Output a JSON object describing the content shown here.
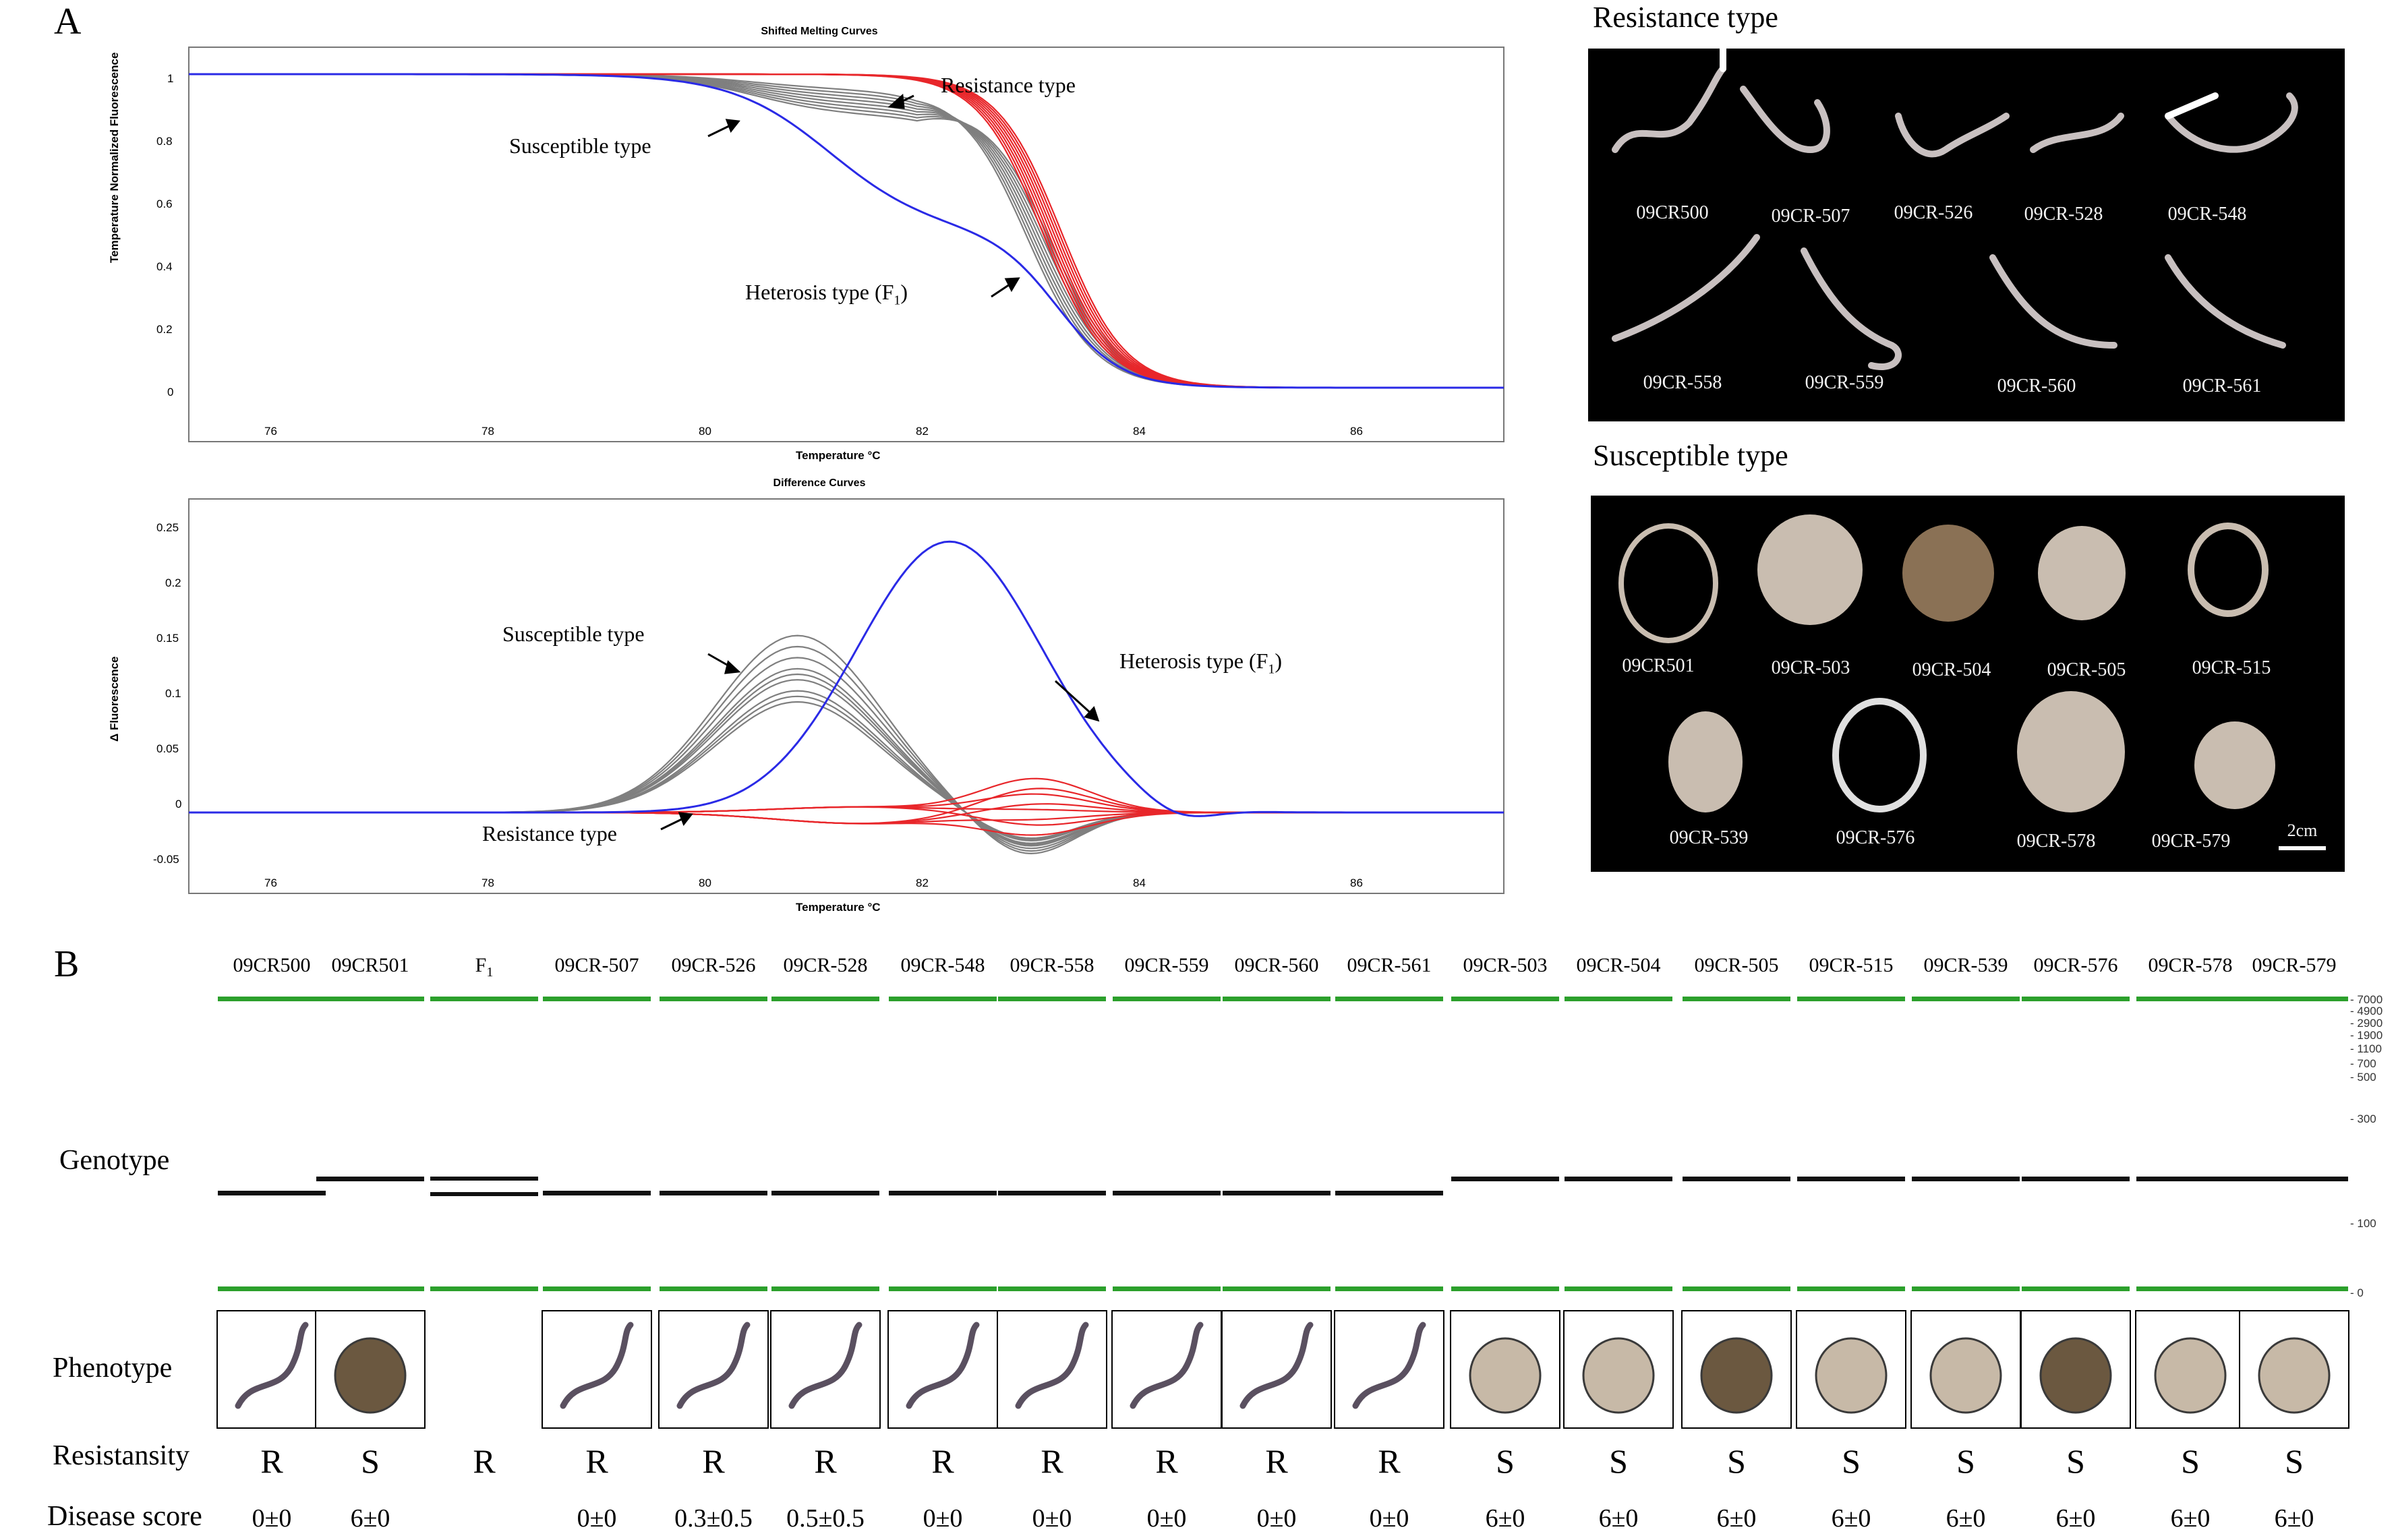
{
  "panelA": {
    "letter": "A",
    "melting": {
      "title": "Shifted Melting Curves",
      "ylabel": "Temperature Normalized Fluorescence",
      "xlabel": "Temperature °C",
      "yticks": [
        "1",
        "0.8",
        "0.6",
        "0.4",
        "0.2",
        "0"
      ],
      "xticks": [
        "76",
        "78",
        "80",
        "82",
        "84",
        "86"
      ],
      "annotations": {
        "resistance": "Resistance type",
        "susceptible": "Susceptible type",
        "heterosis": "Heterosis type (F",
        "heterosis_sub": "1",
        "close": ")"
      }
    },
    "difference": {
      "title": "Difference Curves",
      "ylabel": "Δ Fluorescence",
      "xlabel": "Temperature °C",
      "yticks": [
        "0.25",
        "0.2",
        "0.15",
        "0.1",
        "0.05",
        "0",
        "-0.05"
      ],
      "xticks": [
        "76",
        "78",
        "80",
        "82",
        "84",
        "86"
      ],
      "annotations": {
        "susceptible": "Susceptible type",
        "heterosis": "Heterosis type (F",
        "heterosis_sub": "1",
        "close": ")",
        "resistance": "Resistance type"
      }
    },
    "photos": {
      "resistance_title": "Resistance type",
      "resistance_labels": [
        "09CR500",
        "09CR-507",
        "09CR-526",
        "09CR-528",
        "09CR-548",
        "09CR-558",
        "09CR-559",
        "09CR-560",
        "09CR-561"
      ],
      "susceptible_title": "Susceptible type",
      "susceptible_labels": [
        "09CR501",
        "09CR-503",
        "09CR-504",
        "09CR-505",
        "09CR-515",
        "09CR-539",
        "09CR-576",
        "09CR-578",
        "09CR-579"
      ],
      "scale_bar": "2cm"
    },
    "colors": {
      "resistance": "#e8262a",
      "susceptible": "#7f7f7f",
      "heterosis": "#2a2ae6",
      "gel_line": "#2ca02c"
    }
  },
  "panelB": {
    "letter": "B",
    "samples": [
      "09CR500",
      "09CR501",
      "F",
      "09CR-507",
      "09CR-526",
      "09CR-528",
      "09CR-548",
      "09CR-558",
      "09CR-559",
      "09CR-560",
      "09CR-561",
      "09CR-503",
      "09CR-504",
      "09CR-505",
      "09CR-515",
      "09CR-539",
      "09CR-576",
      "09CR-578",
      "09CR-579"
    ],
    "f1_sub": "1",
    "row_labels": {
      "genotype": "Genotype",
      "phenotype": "Phenotype",
      "resistansity": "Resistansity",
      "score": "Disease score"
    },
    "resistansity": [
      "R",
      "S",
      "R",
      "R",
      "R",
      "R",
      "R",
      "R",
      "R",
      "R",
      "R",
      "S",
      "S",
      "S",
      "S",
      "S",
      "S",
      "S",
      "S"
    ],
    "scores": [
      "0±0",
      "6±0",
      "",
      "0±0",
      "0.3±0.5",
      "0.5±0.5",
      "0±0",
      "0±0",
      "0±0",
      "0±0",
      "0±0",
      "6±0",
      "6±0",
      "6±0",
      "6±0",
      "6±0",
      "6±0",
      "6±0",
      "6±0"
    ],
    "ladder": [
      "7000",
      "4900",
      "2900",
      "1900",
      "1100",
      "700",
      "500",
      "300",
      "100",
      "0"
    ]
  }
}
